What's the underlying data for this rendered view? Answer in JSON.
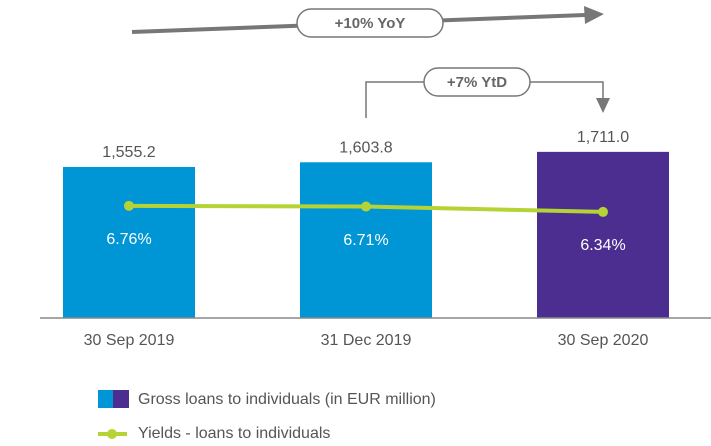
{
  "chart_data": {
    "type": "bar",
    "categories": [
      "30 Sep 2019",
      "31 Dec 2019",
      "30 Sep 2020"
    ],
    "series": [
      {
        "name": "Gross loans to individuals (in EUR million)",
        "type": "bar",
        "colors": [
          "#0096d6",
          "#0096d6",
          "#4b2e8f"
        ],
        "values": [
          1555.2,
          1603.8,
          1711.0
        ],
        "value_labels": [
          "1,555.2",
          "1,603.8",
          "1,711.0"
        ]
      },
      {
        "name": "Yields - loans to individuals",
        "type": "line",
        "axis": "y2",
        "color": "#b5d334",
        "values": [
          6.76,
          6.71,
          6.34
        ],
        "value_labels": [
          "6.76%",
          "6.71%",
          "6.34%"
        ]
      }
    ],
    "ylim": [
      0,
      3275
    ],
    "y2lim": [
      -1,
      21
    ],
    "annotations": [
      "+10% YoY",
      "+7% YtD"
    ]
  }
}
